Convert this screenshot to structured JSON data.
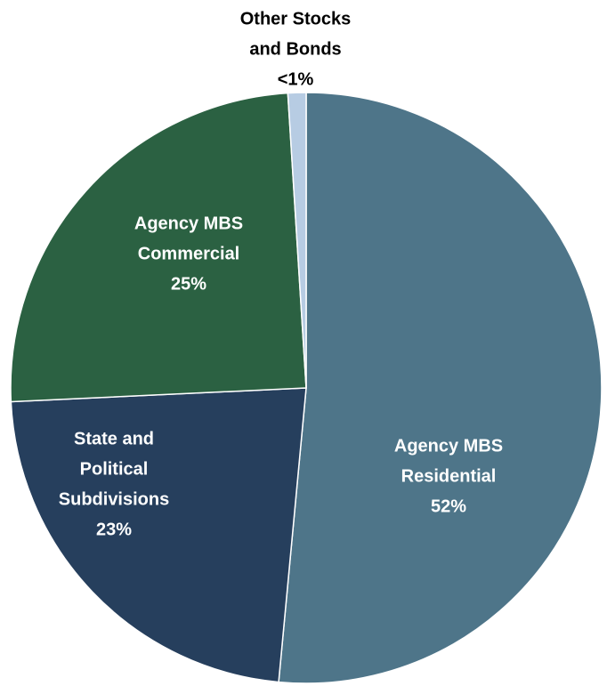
{
  "chart_data": {
    "type": "pie",
    "slices": [
      {
        "name": "Agency MBS Residential",
        "label_lines": [
          "Agency MBS",
          "Residential"
        ],
        "value": 52,
        "value_label": "52%",
        "color": "#4e7589",
        "text_color": "#ffffff"
      },
      {
        "name": "State and Political Subdivisions",
        "label_lines": [
          "State and",
          "Political",
          "Subdivisions"
        ],
        "value": 23,
        "value_label": "23%",
        "color": "#263f5d",
        "text_color": "#ffffff"
      },
      {
        "name": "Agency MBS Commercial",
        "label_lines": [
          "Agency MBS",
          "Commercial"
        ],
        "value": 25,
        "value_label": "25%",
        "color": "#2b6142",
        "text_color": "#ffffff"
      },
      {
        "name": "Other Stocks and Bonds",
        "label_lines": [
          "Other Stocks",
          "and Bonds"
        ],
        "value": 1,
        "value_label": "<1%",
        "color": "#b7cce3",
        "text_color": "#000000",
        "label_outside": true
      }
    ],
    "start_angle_deg": 0,
    "direction": "clockwise"
  }
}
